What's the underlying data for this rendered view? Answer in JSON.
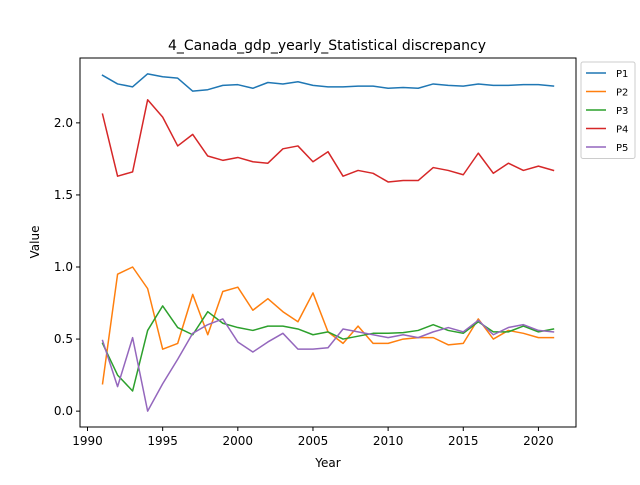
{
  "chart_data": {
    "type": "line",
    "title": "4_Canada_gdp_yearly_Statistical discrepancy",
    "xlabel": "Year",
    "ylabel": "Value",
    "xlim": [
      1989.5,
      2022.5
    ],
    "ylim": [
      -0.11,
      2.45
    ],
    "xticks": [
      1990,
      1995,
      2000,
      2005,
      2010,
      2015,
      2020
    ],
    "yticks": [
      0.0,
      0.5,
      1.0,
      1.5,
      2.0
    ],
    "xtick_labels": [
      "1990",
      "1995",
      "2000",
      "2005",
      "2010",
      "2015",
      "2020"
    ],
    "ytick_labels": [
      "0.0",
      "0.5",
      "1.0",
      "1.5",
      "2.0"
    ],
    "grid": false,
    "legend_position": "top-right outside",
    "x": [
      1991,
      1992,
      1993,
      1994,
      1995,
      1996,
      1997,
      1998,
      1999,
      2000,
      2001,
      2002,
      2003,
      2004,
      2005,
      2006,
      2007,
      2008,
      2009,
      2010,
      2011,
      2012,
      2013,
      2014,
      2015,
      2016,
      2017,
      2018,
      2019,
      2020,
      2021
    ],
    "series": [
      {
        "name": "P1",
        "color": "#1f77b4",
        "values": [
          2.33,
          2.27,
          2.25,
          2.34,
          2.32,
          2.31,
          2.22,
          2.23,
          2.26,
          2.265,
          2.24,
          2.28,
          2.27,
          2.285,
          2.26,
          2.25,
          2.25,
          2.255,
          2.255,
          2.24,
          2.245,
          2.24,
          2.27,
          2.26,
          2.255,
          2.27,
          2.26,
          2.26,
          2.265,
          2.265,
          2.255
        ]
      },
      {
        "name": "P2",
        "color": "#ff7f0e",
        "values": [
          0.19,
          0.95,
          1.0,
          0.85,
          0.43,
          0.47,
          0.81,
          0.53,
          0.83,
          0.86,
          0.7,
          0.78,
          0.69,
          0.62,
          0.82,
          0.55,
          0.47,
          0.59,
          0.47,
          0.47,
          0.5,
          0.51,
          0.51,
          0.46,
          0.47,
          0.64,
          0.5,
          0.56,
          0.54,
          0.51,
          0.51
        ]
      },
      {
        "name": "P3",
        "color": "#2ca02c",
        "values": [
          0.47,
          0.25,
          0.14,
          0.56,
          0.73,
          0.58,
          0.53,
          0.69,
          0.61,
          0.58,
          0.56,
          0.59,
          0.59,
          0.57,
          0.53,
          0.55,
          0.5,
          0.52,
          0.54,
          0.54,
          0.545,
          0.56,
          0.6,
          0.56,
          0.54,
          0.62,
          0.55,
          0.55,
          0.59,
          0.55,
          0.57
        ]
      },
      {
        "name": "P4",
        "color": "#d62728",
        "values": [
          2.06,
          1.63,
          1.66,
          2.16,
          2.04,
          1.84,
          1.92,
          1.77,
          1.74,
          1.76,
          1.73,
          1.72,
          1.82,
          1.84,
          1.73,
          1.8,
          1.63,
          1.67,
          1.65,
          1.59,
          1.6,
          1.6,
          1.69,
          1.67,
          1.64,
          1.79,
          1.65,
          1.72,
          1.67,
          1.7,
          1.67
        ]
      },
      {
        "name": "P5",
        "color": "#9467bd",
        "values": [
          0.49,
          0.17,
          0.51,
          0.0,
          0.19,
          0.36,
          0.54,
          0.6,
          0.64,
          0.48,
          0.41,
          0.48,
          0.54,
          0.43,
          0.43,
          0.44,
          0.57,
          0.55,
          0.53,
          0.51,
          0.53,
          0.51,
          0.55,
          0.58,
          0.55,
          0.63,
          0.53,
          0.58,
          0.6,
          0.56,
          0.55
        ]
      }
    ]
  }
}
